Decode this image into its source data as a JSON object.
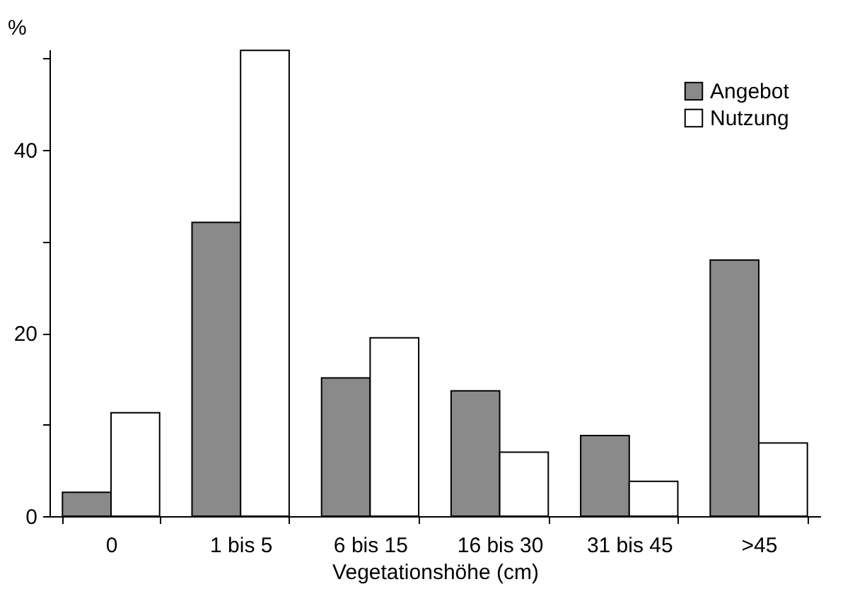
{
  "chart_data": {
    "type": "bar",
    "xlabel": "Vegetationshöhe (cm)",
    "ylabel": "%",
    "categories": [
      "0",
      "1 bis 5",
      "6 bis 15",
      "16 bis 30",
      "31 bis 45",
      ">45"
    ],
    "series": [
      {
        "name": "Angebot",
        "color": "#8a8a8a",
        "values": [
          2.6,
          32.1,
          15.1,
          13.7,
          8.8,
          28.0
        ]
      },
      {
        "name": "Nutzung",
        "color": "#ffffff",
        "values": [
          11.3,
          50.9,
          19.5,
          7.0,
          3.8,
          8.0
        ]
      }
    ],
    "ylim": [
      0,
      51
    ],
    "yticks": [
      0,
      {
        "value": 10,
        "label": null
      },
      20,
      {
        "value": 30,
        "label": null
      },
      40,
      {
        "value": 50,
        "label": null
      }
    ],
    "grid": false,
    "legend": "top right"
  }
}
